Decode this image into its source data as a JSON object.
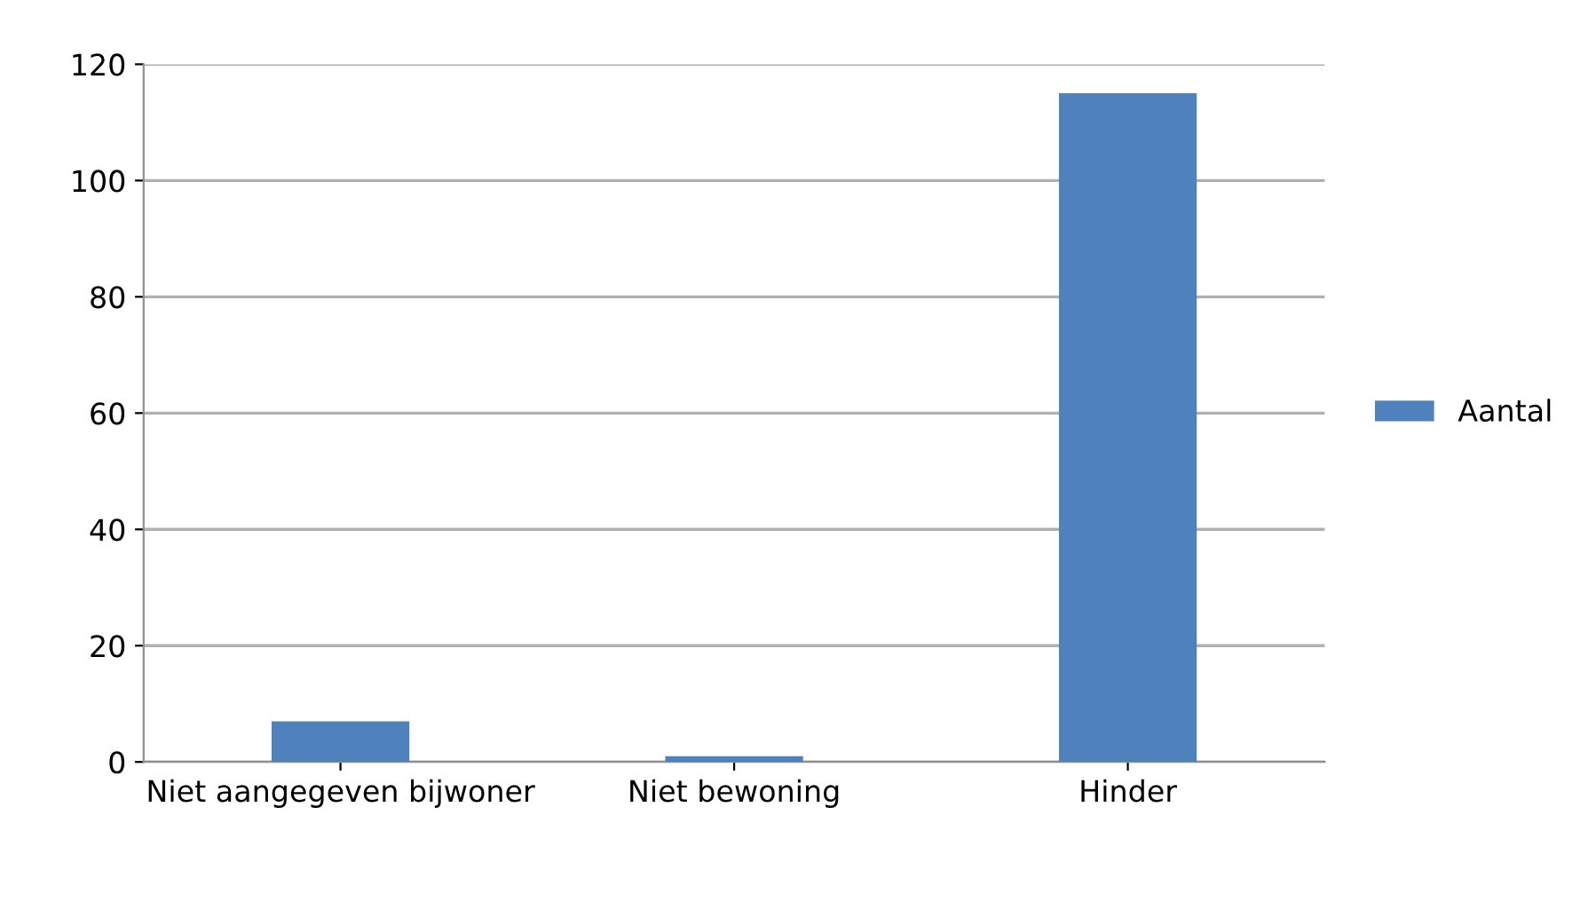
{
  "chart_data": {
    "type": "bar",
    "categories": [
      "Niet aangegeven bijwoner",
      "Niet bewoning",
      "Hinder"
    ],
    "series": [
      {
        "name": "Aantal",
        "color": "#4f81bd",
        "values": [
          7,
          1,
          115
        ]
      }
    ],
    "ylim": [
      0,
      120
    ],
    "yticks": [
      0,
      20,
      40,
      60,
      80,
      100,
      120
    ],
    "grid": "y",
    "legend": "right"
  }
}
